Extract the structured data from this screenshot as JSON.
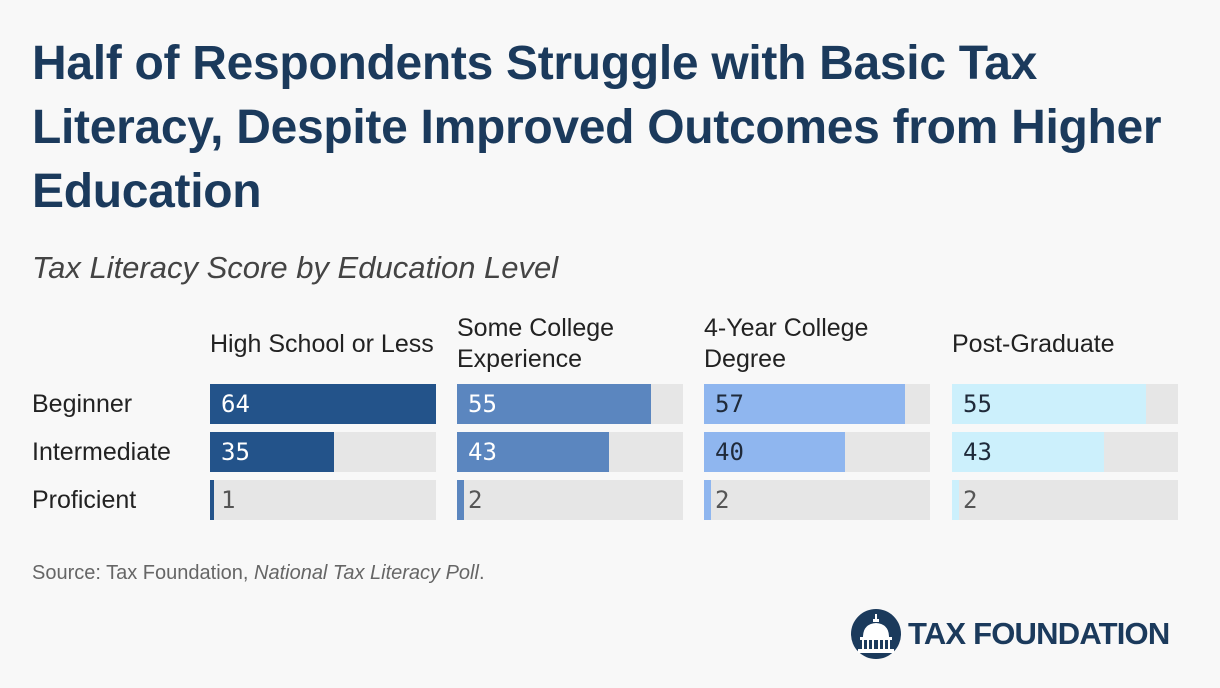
{
  "title": "Half of Respondents Struggle with Basic Tax Literacy, Despite Improved Outcomes from Higher Education",
  "subtitle": "Tax Literacy Score by Education Level",
  "source": {
    "prefix": "Source: Tax Foundation, ",
    "publication": "National Tax Literacy Poll",
    "suffix": "."
  },
  "logo": {
    "text": "TAX FOUNDATION",
    "icon": "capitol-dome-icon"
  },
  "colors": {
    "background": "#f8f8f8",
    "track": "#e6e6e6",
    "title": "#1b3a5c"
  },
  "chart_data": {
    "type": "bar",
    "orientation": "horizontal",
    "layout": "small-multiples",
    "categories": [
      "Beginner",
      "Intermediate",
      "Proficient"
    ],
    "xlim": [
      0,
      64
    ],
    "grid": false,
    "series": [
      {
        "name": "High School or Less",
        "values": [
          64,
          35,
          1
        ],
        "color": "#23538a",
        "text_color": "#ffffff"
      },
      {
        "name": "Some College Experience",
        "values": [
          55,
          43,
          2
        ],
        "color": "#5b86bf",
        "text_color": "#ffffff"
      },
      {
        "name": "4-Year College Degree",
        "values": [
          57,
          40,
          2
        ],
        "color": "#8fb6ef",
        "text_color": "#1f2a3a"
      },
      {
        "name": "Post-Graduate",
        "values": [
          55,
          43,
          2
        ],
        "color": "#ccf0fc",
        "text_color": "#1f2a3a"
      }
    ]
  }
}
